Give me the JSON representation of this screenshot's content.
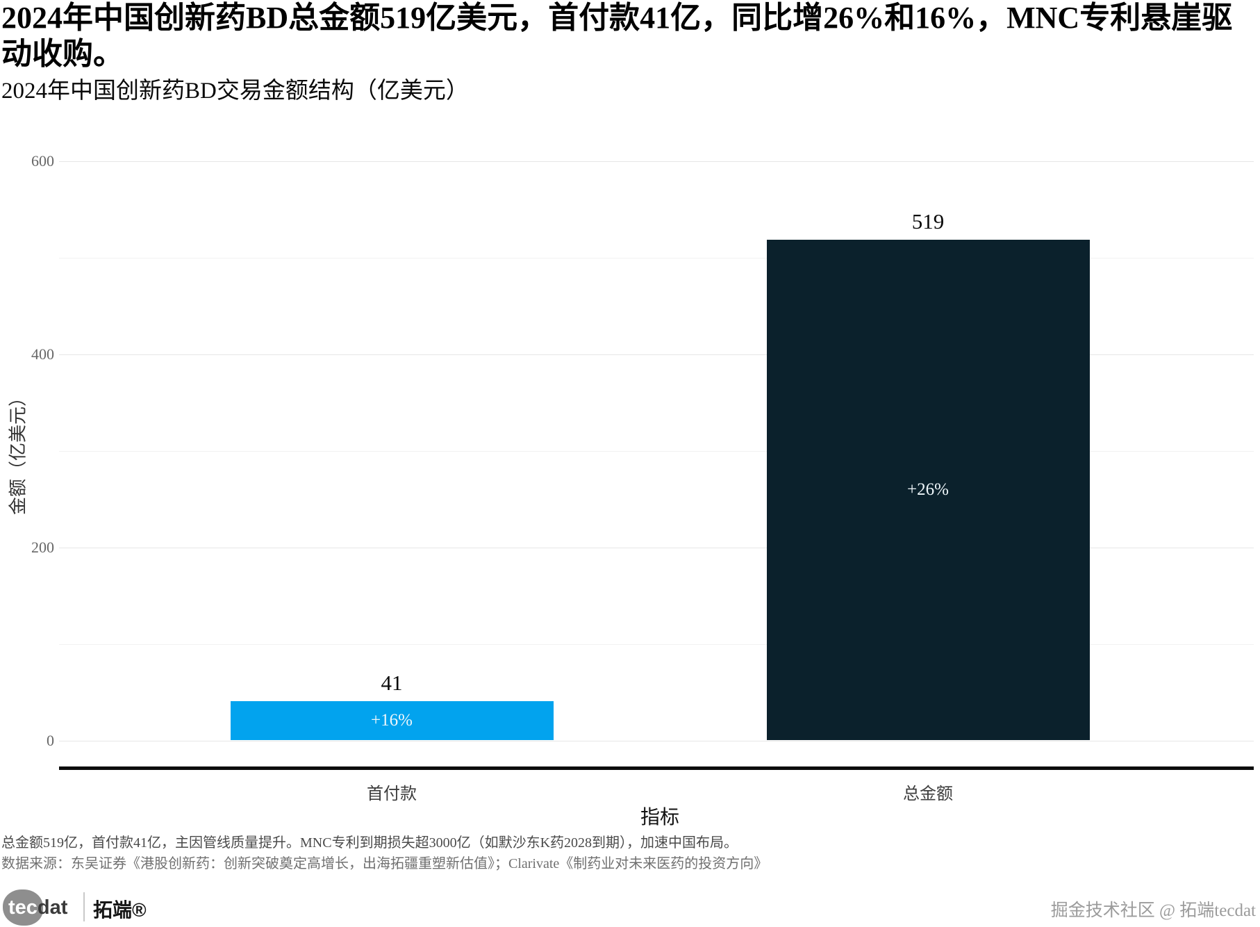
{
  "title": "2024年中国创新药BD总金额519亿美元，首付款41亿，同比增26%和16%，MNC专利悬崖驱动收购。",
  "subtitle": "2024年中国创新药BD交易金额结构（亿美元）",
  "chart_data": {
    "type": "bar",
    "title": "2024年中国创新药BD交易金额结构（亿美元）",
    "categories": [
      "首付款",
      "总金额"
    ],
    "values": [
      41,
      519
    ],
    "bar_growth_labels": [
      "+16%",
      "+26%"
    ],
    "bar_colors": [
      "#02a3ee",
      "#0b212c"
    ],
    "xlabel": "指标",
    "ylabel": "金额（亿美元）",
    "ylim": [
      0,
      600
    ],
    "yticks": [
      0,
      200,
      400,
      600
    ],
    "minor_gridlines_every": 100,
    "grid": "horizontal",
    "legend": "none"
  },
  "footnotes": {
    "line1": "总金额519亿，首付款41亿，主因管线质量提升。MNC专利到期损失超3000亿（如默沙东K药2028到期），加速中国布局。",
    "line2": "数据来源：东吴证券《港股创新药：创新突破奠定高增长，出海拓疆重塑新估值》；Clarivate《制药业对未来医药的投资方向》"
  },
  "branding": {
    "logo_tec": "tec",
    "logo_dat": "dat",
    "brand_name": "拓端®",
    "watermark": "掘金技术社区 @ 拓端tecdat"
  }
}
